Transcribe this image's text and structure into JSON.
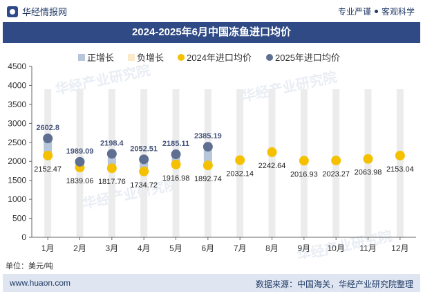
{
  "header": {
    "brand": "华经情报网",
    "tagline_left": "专业严谨",
    "tagline_right": "客观科学"
  },
  "title": "2024-2025年6月中国冻鱼进口均价",
  "unit_label": "单位：美元/吨",
  "footer": {
    "site": "www.huaon.com",
    "source": "数据来源：中国海关，华经产业研究院整理"
  },
  "watermark": "华经产业研究院",
  "chart_data": {
    "type": "line",
    "categories": [
      "1月",
      "2月",
      "3月",
      "4月",
      "5月",
      "6月",
      "7月",
      "8月",
      "9月",
      "10月",
      "11月",
      "12月"
    ],
    "series": [
      {
        "name": "2024年进口均价",
        "color": "#f5c000",
        "values": [
          2152.47,
          1839.06,
          1817.76,
          1734.72,
          1916.98,
          1892.74,
          2032.14,
          2242.64,
          2016.93,
          2023.27,
          2063.98,
          2153.04
        ]
      },
      {
        "name": "2025年进口均价",
        "color": "#5f6f91",
        "values": [
          2602.8,
          1989.09,
          2198.4,
          2052.51,
          2185.11,
          2385.19,
          null,
          null,
          null,
          null,
          null,
          null
        ]
      }
    ],
    "legend": [
      {
        "name": "正增长",
        "color": "#b8c6d9"
      },
      {
        "name": "负增长",
        "color": "#fbe9c8"
      },
      {
        "name": "2024年进口均价",
        "color": "#f5c000"
      },
      {
        "name": "2025年进口均价",
        "color": "#5f6f91"
      }
    ],
    "yticks": [
      0,
      500,
      1000,
      1500,
      2000,
      2500,
      3000,
      3500,
      4000,
      4500
    ],
    "ylim": [
      0,
      4500
    ],
    "band_max": 3900,
    "legend_position": "top-center",
    "grid": false
  }
}
